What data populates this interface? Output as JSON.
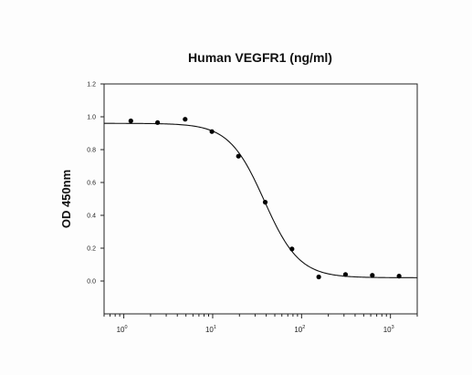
{
  "chart_data": {
    "type": "scatter",
    "title": "Human VEGFR1 (ng/ml)",
    "xlabel": "",
    "ylabel": "OD 450nm",
    "x_scale": "log",
    "xlim": [
      0.6,
      2000
    ],
    "ylim": [
      -0.2,
      1.2
    ],
    "yticks": [
      "0.0",
      "0.2",
      "0.4",
      "0.6",
      "0.8",
      "1.0",
      "1.2"
    ],
    "xticks": [
      {
        "base": "10",
        "exp": "0",
        "value": 1
      },
      {
        "base": "10",
        "exp": "1",
        "value": 10
      },
      {
        "base": "10",
        "exp": "2",
        "value": 100
      },
      {
        "base": "10",
        "exp": "3",
        "value": 1000
      }
    ],
    "grid": false,
    "series": [
      {
        "points": [
          {
            "x": 1.2,
            "y": 0.975
          },
          {
            "x": 2.4,
            "y": 0.965
          },
          {
            "x": 4.9,
            "y": 0.985
          },
          {
            "x": 9.8,
            "y": 0.91
          },
          {
            "x": 19.5,
            "y": 0.76
          },
          {
            "x": 39,
            "y": 0.48
          },
          {
            "x": 78,
            "y": 0.195
          },
          {
            "x": 156,
            "y": 0.025
          },
          {
            "x": 312,
            "y": 0.04
          },
          {
            "x": 625,
            "y": 0.035
          },
          {
            "x": 1250,
            "y": 0.03
          }
        ],
        "fit": {
          "model": "4PL",
          "top": 0.96,
          "bottom": 0.02,
          "ec50": 38,
          "hill": 2.2
        }
      }
    ]
  }
}
